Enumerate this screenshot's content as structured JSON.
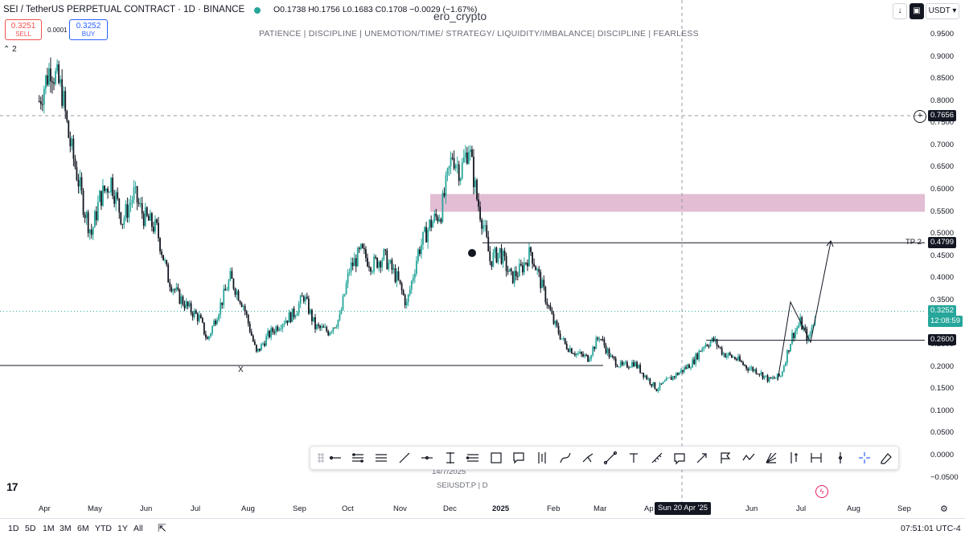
{
  "header": {
    "title": "SEI / TetherUS PERPETUAL CONTRACT · 1D · BINANCE",
    "ohlc": "O0.1738  H0.1756  L0.1683  C0.1708  −0.0029 (−1.67%)",
    "author": "ero_crypto",
    "motto": "PATIENCE   |  DISCIPLINE  |  UNEMOTION/TIME/ STRATEGY/ LIQUIDITY/IMBALANCE|  DISCIPLINE  |  FEARLESS",
    "sell_price": "0.3251",
    "sell_label": "SELL",
    "spread": "0.0001",
    "buy_price": "0.3252",
    "buy_label": "BUY",
    "indicator_count": "2",
    "currency": "USDT",
    "accent_sell": "#ef5350",
    "accent_buy": "#2962ff"
  },
  "price_axis": {
    "ticks": [
      "0.9500",
      "0.9000",
      "0.8500",
      "0.8000",
      "0.7500",
      "0.7000",
      "0.6500",
      "0.6000",
      "0.5500",
      "0.5000",
      "0.4500",
      "0.4000",
      "0.3500",
      "0.3000",
      "0.2500",
      "0.2000",
      "0.1500",
      "0.1000",
      "0.0500",
      "0.0000",
      "−0.0500"
    ],
    "badges": {
      "crosshair_price": "0.7656",
      "tp_label": "TP 2",
      "tp_price": "0.4799",
      "last_price": "0.3252",
      "countdown": "12:08:59",
      "level_price": "0.2600"
    }
  },
  "time_axis": {
    "labels": [
      "Apr",
      "May",
      "Jun",
      "Jul",
      "Aug",
      "Sep",
      "Oct",
      "Nov",
      "Dec",
      "2025",
      "Feb",
      "Mar",
      "Ap",
      "Jun",
      "Jul",
      "Aug",
      "Sep"
    ],
    "crosshair_date": "Sun 20 Apr '25"
  },
  "annotations": {
    "x_marker": "X",
    "date_note": "14/7/2025",
    "symbol_note": "SEIUSDT.P | D",
    "tv_logo": "17"
  },
  "bottom_bar": {
    "timeframes": [
      "1D",
      "5D",
      "1M",
      "3M",
      "6M",
      "YTD",
      "1Y",
      "All"
    ],
    "clock": "07:51:01 UTC-4"
  },
  "drawing_toolbar": {
    "icons": [
      "drag-handle-icon",
      "horizontal-ray-icon",
      "parallel-lines-icon",
      "horizontal-lines-icon",
      "trend-line-icon",
      "horizontal-line-icon",
      "vertical-text-icon",
      "fib-retracement-icon",
      "rectangle-icon",
      "callout-icon",
      "long-position-icon",
      "path-icon",
      "pitchfork-icon",
      "brush-icon",
      "text-icon",
      "ruler-icon",
      "comment-icon",
      "arrow-icon",
      "flag-icon",
      "zigzag-icon",
      "fib-fan-icon",
      "price-range-icon",
      "date-range-icon",
      "vertical-line-icon",
      "crosshair-icon",
      "eraser-icon"
    ]
  },
  "chart_data": {
    "type": "candlestick",
    "symbol": "SEIUSDT.P",
    "up_color": "#26a69a",
    "down_color": "#131722",
    "ylim": [
      -0.05,
      0.95
    ],
    "x": [
      "2024-04",
      "2024-05",
      "2024-06",
      "2024-07",
      "2024-08",
      "2024-09",
      "2024-10",
      "2024-11",
      "2024-12",
      "2025-01",
      "2025-02",
      "2025-03",
      "2025-04",
      "2025-05",
      "2025-06",
      "2025-07",
      "2025-08",
      "2025-09"
    ],
    "close_path": [
      {
        "d": "2024-03-25",
        "p": 0.8
      },
      {
        "d": "2024-04-01",
        "p": 0.88
      },
      {
        "d": "2024-04-08",
        "p": 0.82
      },
      {
        "d": "2024-04-12",
        "p": 0.72
      },
      {
        "d": "2024-04-18",
        "p": 0.62
      },
      {
        "d": "2024-04-22",
        "p": 0.55
      },
      {
        "d": "2024-04-26",
        "p": 0.5
      },
      {
        "d": "2024-05-01",
        "p": 0.58
      },
      {
        "d": "2024-05-08",
        "p": 0.62
      },
      {
        "d": "2024-05-15",
        "p": 0.53
      },
      {
        "d": "2024-05-22",
        "p": 0.59
      },
      {
        "d": "2024-05-28",
        "p": 0.54
      },
      {
        "d": "2024-06-05",
        "p": 0.51
      },
      {
        "d": "2024-06-12",
        "p": 0.4
      },
      {
        "d": "2024-06-18",
        "p": 0.36
      },
      {
        "d": "2024-06-25",
        "p": 0.33
      },
      {
        "d": "2024-07-01",
        "p": 0.31
      },
      {
        "d": "2024-07-06",
        "p": 0.26
      },
      {
        "d": "2024-07-12",
        "p": 0.32
      },
      {
        "d": "2024-07-20",
        "p": 0.4
      },
      {
        "d": "2024-07-28",
        "p": 0.34
      },
      {
        "d": "2024-08-05",
        "p": 0.23
      },
      {
        "d": "2024-08-12",
        "p": 0.27
      },
      {
        "d": "2024-08-20",
        "p": 0.3
      },
      {
        "d": "2024-08-28",
        "p": 0.32
      },
      {
        "d": "2024-09-03",
        "p": 0.36
      },
      {
        "d": "2024-09-10",
        "p": 0.29
      },
      {
        "d": "2024-09-18",
        "p": 0.28
      },
      {
        "d": "2024-09-25",
        "p": 0.31
      },
      {
        "d": "2024-10-01",
        "p": 0.42
      },
      {
        "d": "2024-10-08",
        "p": 0.46
      },
      {
        "d": "2024-10-15",
        "p": 0.43
      },
      {
        "d": "2024-10-22",
        "p": 0.45
      },
      {
        "d": "2024-10-30",
        "p": 0.4
      },
      {
        "d": "2024-11-05",
        "p": 0.34
      },
      {
        "d": "2024-11-12",
        "p": 0.46
      },
      {
        "d": "2024-11-19",
        "p": 0.52
      },
      {
        "d": "2024-11-26",
        "p": 0.55
      },
      {
        "d": "2024-12-03",
        "p": 0.68
      },
      {
        "d": "2024-12-08",
        "p": 0.64
      },
      {
        "d": "2024-12-13",
        "p": 0.7
      },
      {
        "d": "2024-12-18",
        "p": 0.58
      },
      {
        "d": "2024-12-22",
        "p": 0.52
      },
      {
        "d": "2024-12-26",
        "p": 0.44
      },
      {
        "d": "2025-01-01",
        "p": 0.46
      },
      {
        "d": "2025-01-08",
        "p": 0.4
      },
      {
        "d": "2025-01-14",
        "p": 0.42
      },
      {
        "d": "2025-01-20",
        "p": 0.46
      },
      {
        "d": "2025-01-27",
        "p": 0.38
      },
      {
        "d": "2025-02-03",
        "p": 0.3
      },
      {
        "d": "2025-02-10",
        "p": 0.25
      },
      {
        "d": "2025-02-17",
        "p": 0.23
      },
      {
        "d": "2025-02-24",
        "p": 0.22
      },
      {
        "d": "2025-03-03",
        "p": 0.27
      },
      {
        "d": "2025-03-10",
        "p": 0.22
      },
      {
        "d": "2025-03-17",
        "p": 0.2
      },
      {
        "d": "2025-03-24",
        "p": 0.21
      },
      {
        "d": "2025-03-31",
        "p": 0.18
      },
      {
        "d": "2025-04-07",
        "p": 0.15
      },
      {
        "d": "2025-04-14",
        "p": 0.17
      },
      {
        "d": "2025-04-22",
        "p": 0.19
      },
      {
        "d": "2025-04-29",
        "p": 0.21
      },
      {
        "d": "2025-05-06",
        "p": 0.25
      },
      {
        "d": "2025-05-12",
        "p": 0.26
      },
      {
        "d": "2025-05-18",
        "p": 0.23
      },
      {
        "d": "2025-05-25",
        "p": 0.22
      },
      {
        "d": "2025-06-01",
        "p": 0.2
      },
      {
        "d": "2025-06-08",
        "p": 0.19
      },
      {
        "d": "2025-06-15",
        "p": 0.17
      },
      {
        "d": "2025-06-22",
        "p": 0.18
      },
      {
        "d": "2025-06-29",
        "p": 0.27
      },
      {
        "d": "2025-07-04",
        "p": 0.3
      },
      {
        "d": "2025-07-09",
        "p": 0.26
      },
      {
        "d": "2025-07-14",
        "p": 0.33
      }
    ],
    "support_line": 0.2,
    "tp_level": 0.4799,
    "horizontal_level": 0.26,
    "supply_zone": [
      0.55,
      0.59
    ],
    "last_price": 0.3252
  }
}
